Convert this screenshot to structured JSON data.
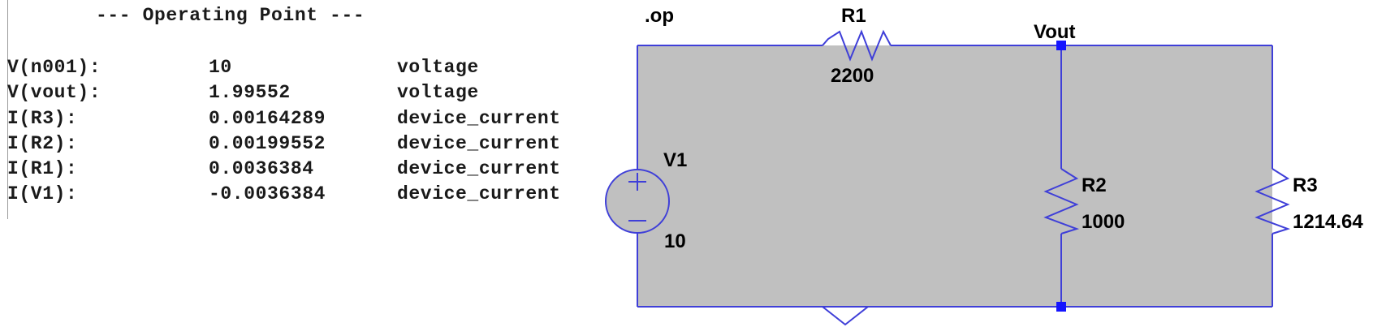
{
  "operating_point": {
    "header": "--- Operating Point ---",
    "rows": [
      {
        "name": "V(n001):",
        "value": "10",
        "type": "voltage"
      },
      {
        "name": "V(vout):",
        "value": "1.99552",
        "type": "voltage"
      },
      {
        "name": "I(R3):",
        "value": "0.00164289",
        "type": "device_current"
      },
      {
        "name": "I(R2):",
        "value": "0.00199552",
        "type": "device_current"
      },
      {
        "name": "I(R1):",
        "value": "0.0036384",
        "type": "device_current"
      },
      {
        "name": "I(V1):",
        "value": "-0.0036384",
        "type": "device_current"
      }
    ]
  },
  "schematic": {
    "directive": ".op",
    "net_label": "Vout",
    "components": {
      "r1": {
        "name": "R1",
        "value": "2200"
      },
      "r2": {
        "name": "R2",
        "value": "1000"
      },
      "r3": {
        "name": "R3",
        "value": "1214.64"
      },
      "v1": {
        "name": "V1",
        "value": "10"
      }
    },
    "colors": {
      "wire": "#3f3fd8",
      "fill": "#c0c0c0",
      "junction": "#1515ff",
      "text": "#000000"
    }
  }
}
